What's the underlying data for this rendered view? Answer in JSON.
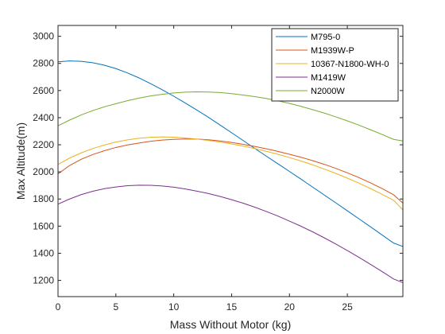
{
  "chart_data": {
    "type": "line",
    "title": "",
    "xlabel": "Mass Without Motor (kg)",
    "ylabel": "Max Altitude(m)",
    "xlim": [
      0,
      29.8
    ],
    "ylim": [
      1080,
      3080
    ],
    "xticks": [
      0,
      5,
      10,
      15,
      20,
      25
    ],
    "yticks": [
      1200,
      1400,
      1600,
      1800,
      2000,
      2200,
      2400,
      2600,
      2800,
      3000
    ],
    "grid": false,
    "legend_position": "top-right",
    "series": [
      {
        "name": "M795-0",
        "color": "#0072BD",
        "x": [
          0,
          1,
          2,
          3,
          4,
          5,
          6,
          7,
          8,
          9,
          10,
          11,
          12,
          13,
          14,
          15,
          16,
          17,
          18,
          19,
          20,
          21,
          22,
          23,
          24,
          25,
          26,
          27,
          28,
          29,
          29.8
        ],
        "y": [
          2812,
          2818,
          2815,
          2805,
          2787,
          2762,
          2730,
          2693,
          2651,
          2606,
          2558,
          2508,
          2456,
          2402,
          2346,
          2289,
          2231,
          2173,
          2116,
          2060,
          2003,
          1946,
          1888,
          1830,
          1772,
          1713,
          1654,
          1595,
          1535,
          1475,
          1450
        ]
      },
      {
        "name": "M1939W-P",
        "color": "#D95319",
        "x": [
          0,
          1,
          2,
          3,
          4,
          5,
          6,
          7,
          8,
          9,
          10,
          11,
          12,
          13,
          14,
          15,
          16,
          17,
          18,
          19,
          20,
          21,
          22,
          23,
          24,
          25,
          26,
          27,
          28,
          29,
          29.8
        ],
        "y": [
          1985,
          2047,
          2093,
          2128,
          2156,
          2180,
          2199,
          2213,
          2226,
          2235,
          2240,
          2243,
          2242,
          2237,
          2228,
          2217,
          2203,
          2188,
          2170,
          2151,
          2130,
          2108,
          2083,
          2056,
          2026,
          1993,
          1958,
          1919,
          1877,
          1831,
          1770
        ]
      },
      {
        "name": "10367-N1800-WH-0",
        "color": "#EDB120",
        "x": [
          0,
          1,
          2,
          3,
          4,
          5,
          6,
          7,
          8,
          9,
          10,
          11,
          12,
          13,
          14,
          15,
          16,
          17,
          18,
          19,
          20,
          21,
          22,
          23,
          24,
          25,
          26,
          27,
          28,
          29,
          29.8
        ],
        "y": [
          2055,
          2102,
          2140,
          2172,
          2198,
          2220,
          2236,
          2248,
          2255,
          2258,
          2256,
          2250,
          2242,
          2232,
          2220,
          2206,
          2190,
          2172,
          2152,
          2130,
          2106,
          2080,
          2052,
          2021,
          1989,
          1954,
          1917,
          1877,
          1835,
          1790,
          1720
        ]
      },
      {
        "name": "M1419W",
        "color": "#7E2F8E",
        "x": [
          0,
          1,
          2,
          3,
          4,
          5,
          6,
          7,
          8,
          9,
          10,
          11,
          12,
          13,
          14,
          15,
          16,
          17,
          18,
          19,
          20,
          21,
          22,
          23,
          24,
          25,
          26,
          27,
          28,
          29,
          29.8
        ],
        "y": [
          1762,
          1800,
          1832,
          1857,
          1876,
          1889,
          1898,
          1902,
          1901,
          1896,
          1887,
          1874,
          1858,
          1840,
          1819,
          1795,
          1769,
          1740,
          1708,
          1674,
          1637,
          1599,
          1558,
          1514,
          1468,
          1420,
          1370,
          1318,
          1265,
          1210,
          1183
        ]
      },
      {
        "name": "N2000W",
        "color": "#77AC30",
        "x": [
          0,
          1,
          2,
          3,
          4,
          5,
          6,
          7,
          8,
          9,
          10,
          11,
          12,
          13,
          14,
          15,
          16,
          17,
          18,
          19,
          20,
          21,
          22,
          23,
          24,
          25,
          26,
          27,
          28,
          29,
          29.8
        ],
        "y": [
          2340,
          2382,
          2420,
          2452,
          2480,
          2503,
          2525,
          2544,
          2560,
          2572,
          2582,
          2588,
          2590,
          2589,
          2585,
          2577,
          2567,
          2555,
          2541,
          2524,
          2505,
          2483,
          2459,
          2434,
          2406,
          2376,
          2345,
          2311,
          2276,
          2240,
          2228
        ]
      }
    ]
  }
}
